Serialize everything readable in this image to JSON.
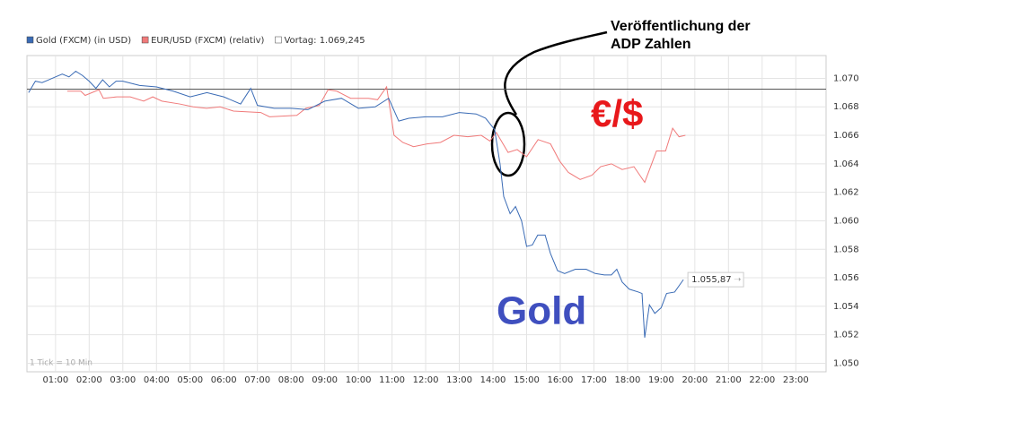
{
  "chart_data": {
    "type": "line",
    "xlim": [
      0.15,
      23.9
    ],
    "ylim": [
      1.0494,
      1.0716
    ],
    "xticks": [
      {
        "value": 1,
        "label": "01:00"
      },
      {
        "value": 2,
        "label": "02:00"
      },
      {
        "value": 3,
        "label": "03:00"
      },
      {
        "value": 4,
        "label": "04:00"
      },
      {
        "value": 5,
        "label": "05:00"
      },
      {
        "value": 6,
        "label": "06:00"
      },
      {
        "value": 7,
        "label": "07:00"
      },
      {
        "value": 8,
        "label": "08:00"
      },
      {
        "value": 9,
        "label": "09:00"
      },
      {
        "value": 10,
        "label": "10:00"
      },
      {
        "value": 11,
        "label": "11:00"
      },
      {
        "value": 12,
        "label": "12:00"
      },
      {
        "value": 13,
        "label": "13:00"
      },
      {
        "value": 14,
        "label": "14:00"
      },
      {
        "value": 15,
        "label": "15:00"
      },
      {
        "value": 16,
        "label": "16:00"
      },
      {
        "value": 17,
        "label": "17:00"
      },
      {
        "value": 18,
        "label": "18:00"
      },
      {
        "value": 19,
        "label": "19:00"
      },
      {
        "value": 20,
        "label": "20:00"
      },
      {
        "value": 21,
        "label": "21:00"
      },
      {
        "value": 22,
        "label": "22:00"
      },
      {
        "value": 23,
        "label": "23:00"
      }
    ],
    "yticks": [
      {
        "value": 1.05,
        "label": "1.050"
      },
      {
        "value": 1.052,
        "label": "1.052"
      },
      {
        "value": 1.054,
        "label": "1.054"
      },
      {
        "value": 1.056,
        "label": "1.056"
      },
      {
        "value": 1.058,
        "label": "1.058"
      },
      {
        "value": 1.06,
        "label": "1.060"
      },
      {
        "value": 1.062,
        "label": "1.062"
      },
      {
        "value": 1.064,
        "label": "1.064"
      },
      {
        "value": 1.066,
        "label": "1.066"
      },
      {
        "value": 1.068,
        "label": "1.068"
      },
      {
        "value": 1.07,
        "label": "1.070"
      }
    ],
    "grid": true,
    "reference": {
      "value": 1.069245,
      "label": "Vortag: 1.069,245",
      "color": "#555555"
    },
    "series": [
      {
        "name": "Gold (FXCM) (in USD)",
        "color": "#3a6bb5",
        "x": [
          0.2,
          0.4,
          0.6,
          0.8,
          1.0,
          1.2,
          1.4,
          1.6,
          1.8,
          2.0,
          2.2,
          2.4,
          2.6,
          2.8,
          3.0,
          3.5,
          4.0,
          4.5,
          5.0,
          5.5,
          6.0,
          6.5,
          6.8,
          7.0,
          7.5,
          8.0,
          8.5,
          9.0,
          9.5,
          10.0,
          10.5,
          10.9,
          11.2,
          11.5,
          12.0,
          12.5,
          13.0,
          13.5,
          13.78,
          14.05,
          14.21,
          14.32,
          14.51,
          14.67,
          14.85,
          15.0,
          15.17,
          15.33,
          15.55,
          15.71,
          15.92,
          16.13,
          16.45,
          16.77,
          17.04,
          17.31,
          17.52,
          17.68,
          17.84,
          18.05,
          18.32,
          18.43,
          18.51,
          18.65,
          18.81,
          19.0,
          19.16,
          19.4,
          19.66
        ],
        "values": [
          1.069,
          1.0698,
          1.0697,
          1.0699,
          1.0701,
          1.0703,
          1.0701,
          1.0705,
          1.0702,
          1.0698,
          1.0693,
          1.0699,
          1.0694,
          1.0698,
          1.0698,
          1.0695,
          1.0694,
          1.0691,
          1.0687,
          1.069,
          1.0687,
          1.0682,
          1.0693,
          1.0681,
          1.0679,
          1.0679,
          1.0678,
          1.0684,
          1.0686,
          1.0679,
          1.068,
          1.0686,
          1.067,
          1.0672,
          1.0673,
          1.0673,
          1.0676,
          1.0675,
          1.0672,
          1.0664,
          1.064,
          1.0617,
          1.0605,
          1.061,
          1.06,
          1.0582,
          1.0583,
          1.059,
          1.059,
          1.0577,
          1.0565,
          1.0563,
          1.0566,
          1.0566,
          1.0563,
          1.0562,
          1.0562,
          1.0566,
          1.0557,
          1.0552,
          1.055,
          1.0549,
          1.0518,
          1.0541,
          1.0535,
          1.0539,
          1.0549,
          1.055,
          1.05587
        ]
      },
      {
        "name": "EUR/USD (FXCM) (relativ)",
        "color": "#f07a7a",
        "x": [
          1.35,
          1.75,
          1.88,
          2.29,
          2.42,
          2.82,
          3.22,
          3.62,
          3.89,
          4.16,
          4.69,
          5.09,
          5.49,
          5.89,
          6.29,
          7.1,
          7.36,
          8.17,
          8.44,
          8.84,
          9.1,
          9.36,
          9.77,
          10.3,
          10.57,
          10.84,
          11.06,
          11.32,
          11.64,
          12.04,
          12.44,
          12.84,
          13.25,
          13.65,
          13.91,
          14.1,
          14.45,
          14.72,
          15.0,
          15.34,
          15.71,
          15.98,
          16.24,
          16.59,
          16.94,
          17.2,
          17.52,
          17.84,
          18.19,
          18.51,
          18.86,
          19.13,
          19.34,
          19.53,
          19.72
        ],
        "values": [
          1.0691,
          1.0691,
          1.0688,
          1.0692,
          1.0686,
          1.0687,
          1.0687,
          1.0684,
          1.0687,
          1.0684,
          1.0682,
          1.068,
          1.0679,
          1.068,
          1.0677,
          1.0676,
          1.0673,
          1.0674,
          1.0679,
          1.0681,
          1.0692,
          1.0691,
          1.0686,
          1.0686,
          1.0685,
          1.0694,
          1.066,
          1.0655,
          1.0652,
          1.0654,
          1.0655,
          1.066,
          1.0659,
          1.066,
          1.0656,
          1.0662,
          1.0648,
          1.065,
          1.0645,
          1.0657,
          1.0654,
          1.0642,
          1.0634,
          1.0629,
          1.0632,
          1.0638,
          1.064,
          1.0636,
          1.0638,
          1.0627,
          1.0649,
          1.0649,
          1.0665,
          1.0659,
          1.066
        ]
      }
    ],
    "last_value_label": "1.055,87",
    "annotations": {
      "adp_line1": "Veröffentlichung der",
      "adp_line2": "ADP Zahlen",
      "eur_label": "€/$",
      "gold_label": "Gold",
      "tick_note": "1 Tick = 10 Min"
    }
  }
}
